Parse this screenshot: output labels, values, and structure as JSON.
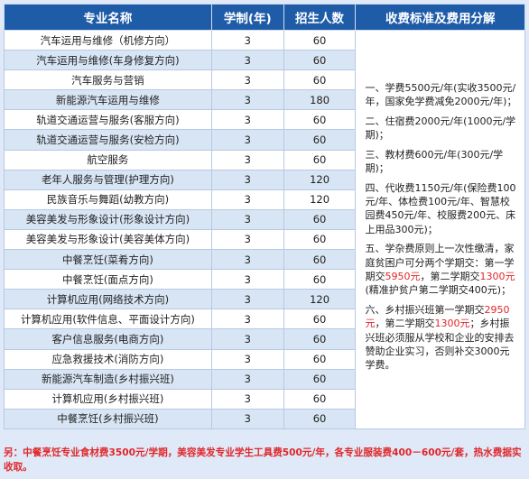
{
  "header": {
    "major": "专业名称",
    "years": "学制(年)",
    "quota": "招生人数",
    "fees": "收费标准及费用分解"
  },
  "rows": [
    {
      "major": "汽车运用与维修（机修方向）",
      "years": "3",
      "quota": "60"
    },
    {
      "major": "汽车运用与维修(车身修复方向)",
      "years": "3",
      "quota": "60"
    },
    {
      "major": "汽车服务与营销",
      "years": "3",
      "quota": "60"
    },
    {
      "major": "新能源汽车运用与维修",
      "years": "3",
      "quota": "180"
    },
    {
      "major": "轨道交通运营与服务(客服方向)",
      "years": "3",
      "quota": "60"
    },
    {
      "major": "轨道交通运营与服务(安检方向)",
      "years": "3",
      "quota": "60"
    },
    {
      "major": "航空服务",
      "years": "3",
      "quota": "60"
    },
    {
      "major": "老年人服务与管理(护理方向)",
      "years": "3",
      "quota": "120"
    },
    {
      "major": "民族音乐与舞蹈(幼教方向)",
      "years": "3",
      "quota": "120"
    },
    {
      "major": "美容美发与形象设计(形象设计方向)",
      "years": "3",
      "quota": "60"
    },
    {
      "major": "美容美发与形象设计(美容美体方向)",
      "years": "3",
      "quota": "60"
    },
    {
      "major": "中餐烹饪(菜肴方向)",
      "years": "3",
      "quota": "60"
    },
    {
      "major": "中餐烹饪(面点方向)",
      "years": "3",
      "quota": "60"
    },
    {
      "major": "计算机应用(网络技术方向)",
      "years": "3",
      "quota": "120"
    },
    {
      "major": "计算机应用(软件信息、平面设计方向)",
      "years": "3",
      "quota": "60"
    },
    {
      "major": "客户信息服务(电商方向)",
      "years": "3",
      "quota": "60"
    },
    {
      "major": "应急救援技术(消防方向)",
      "years": "3",
      "quota": "60"
    },
    {
      "major": "新能源汽车制造(乡村振兴班)",
      "years": "3",
      "quota": "60"
    },
    {
      "major": "计算机应用(乡村振兴班)",
      "years": "3",
      "quota": "60"
    },
    {
      "major": "中餐烹饪(乡村振兴班)",
      "years": "3",
      "quota": "60"
    }
  ],
  "fees": {
    "p1": "一、学费5500元/年(实收3500元/年，国家免学费减免2000元/年)；",
    "p2": "二、住宿费2000元/年(1000元/学期)；",
    "p3": "三、教材费600元/年(300元/学期)；",
    "p4": "四、代收费1150元/年(保险费100元/年、体检费100元/年、智慧校园费450元/年、校服费200元、床上用品300元)；",
    "p5a": "五、学杂费原则上一次性缴清，家庭贫困户可分两个学期交：第一学期交",
    "p5b": "5950元",
    "p5c": "，第二学期交",
    "p5d": "1300元",
    "p5e": "(精准护贫户第二学期交400元)；",
    "p6a": "六、乡村振兴班第一学期交",
    "p6b": "2950元",
    "p6c": "，第二学期交",
    "p6d": "1300元",
    "p6e": "；乡村振兴班必须服从学校和企业的安排去赞助企业实习，否则补交3000元学费。"
  },
  "note": "另：中餐烹饪专业食材费3500元/学期，美容美发专业学生工具费500元/年，各专业服装费400－600元/套，热水费据实收取。",
  "colors": {
    "header_bg": "#1f5ca8",
    "row_alt": "#d8e5f5",
    "accent_red": "#e0262a",
    "page_bg": "#dfe9f7"
  }
}
